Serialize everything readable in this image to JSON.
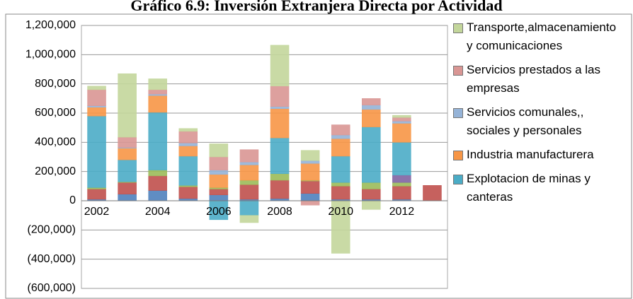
{
  "chart_data": {
    "type": "stacked-bar",
    "title": "Gráfico 6.9: Inversión Extranjera Directa por Actividad",
    "categories": [
      "2002",
      null,
      "2004",
      null,
      "2006",
      null,
      "2008",
      null,
      "2010",
      null,
      "2012",
      null
    ],
    "ylim": [
      -600000,
      1200000
    ],
    "yticks": [
      {
        "value": -600000,
        "label": "(600,000)"
      },
      {
        "value": -400000,
        "label": "(400,000)"
      },
      {
        "value": -200000,
        "label": "(200,000)"
      },
      0,
      {
        "value": 200000,
        "label": "200,000"
      },
      {
        "value": 400000,
        "label": "400,000"
      },
      {
        "value": 600000,
        "label": "600,000"
      },
      {
        "value": 800000,
        "label": "800,000"
      },
      {
        "value": 1000000,
        "label": "1,000,000"
      },
      {
        "value": 1200000,
        "label": "1,200,000"
      }
    ],
    "grid": true,
    "legend": "right",
    "series": [
      {
        "color": "#4f81bd",
        "values": [
          10000,
          45000,
          70000,
          15000,
          40000,
          10000,
          15000,
          50000,
          10000,
          10000,
          10000,
          0
        ]
      },
      {
        "color": "#c0504d",
        "values": [
          70000,
          80000,
          100000,
          80000,
          40000,
          100000,
          125000,
          85000,
          90000,
          70000,
          90000,
          105000
        ]
      },
      {
        "color": "#9bbb59",
        "values": [
          10000,
          5000,
          40000,
          10000,
          10000,
          30000,
          45000,
          5000,
          25000,
          45000,
          25000,
          0
        ]
      },
      {
        "color": "#8064a2",
        "values": [
          0,
          0,
          0,
          0,
          0,
          0,
          0,
          0,
          0,
          0,
          50000,
          0
        ]
      },
      {
        "name": "Explotacion de minas y canteras",
        "color": "#4bacc6",
        "values": [
          490000,
          150000,
          395000,
          200000,
          -130000,
          -100000,
          245000,
          0,
          180000,
          380000,
          225000,
          0
        ]
      },
      {
        "name": "Industria manufacturera",
        "color": "#f79646",
        "values": [
          60000,
          80000,
          115000,
          70000,
          90000,
          105000,
          200000,
          115000,
          120000,
          120000,
          130000,
          0
        ]
      },
      {
        "name": "Servicios comunales,, sociales y personales",
        "color": "#95b3d7",
        "values": [
          10000,
          5000,
          10000,
          20000,
          30000,
          20000,
          15000,
          20000,
          25000,
          30000,
          15000,
          0
        ]
      },
      {
        "name": "Servicios prestados a las empresas",
        "color": "#d99694",
        "values": [
          110000,
          70000,
          30000,
          80000,
          90000,
          85000,
          140000,
          -30000,
          70000,
          45000,
          25000,
          0
        ]
      },
      {
        "name": "Transporte,almacenamiento y comunicaciones",
        "color": "#c3d69b",
        "values": [
          25000,
          435000,
          75000,
          20000,
          90000,
          -50000,
          280000,
          70000,
          -360000,
          -60000,
          15000,
          0
        ]
      }
    ]
  }
}
